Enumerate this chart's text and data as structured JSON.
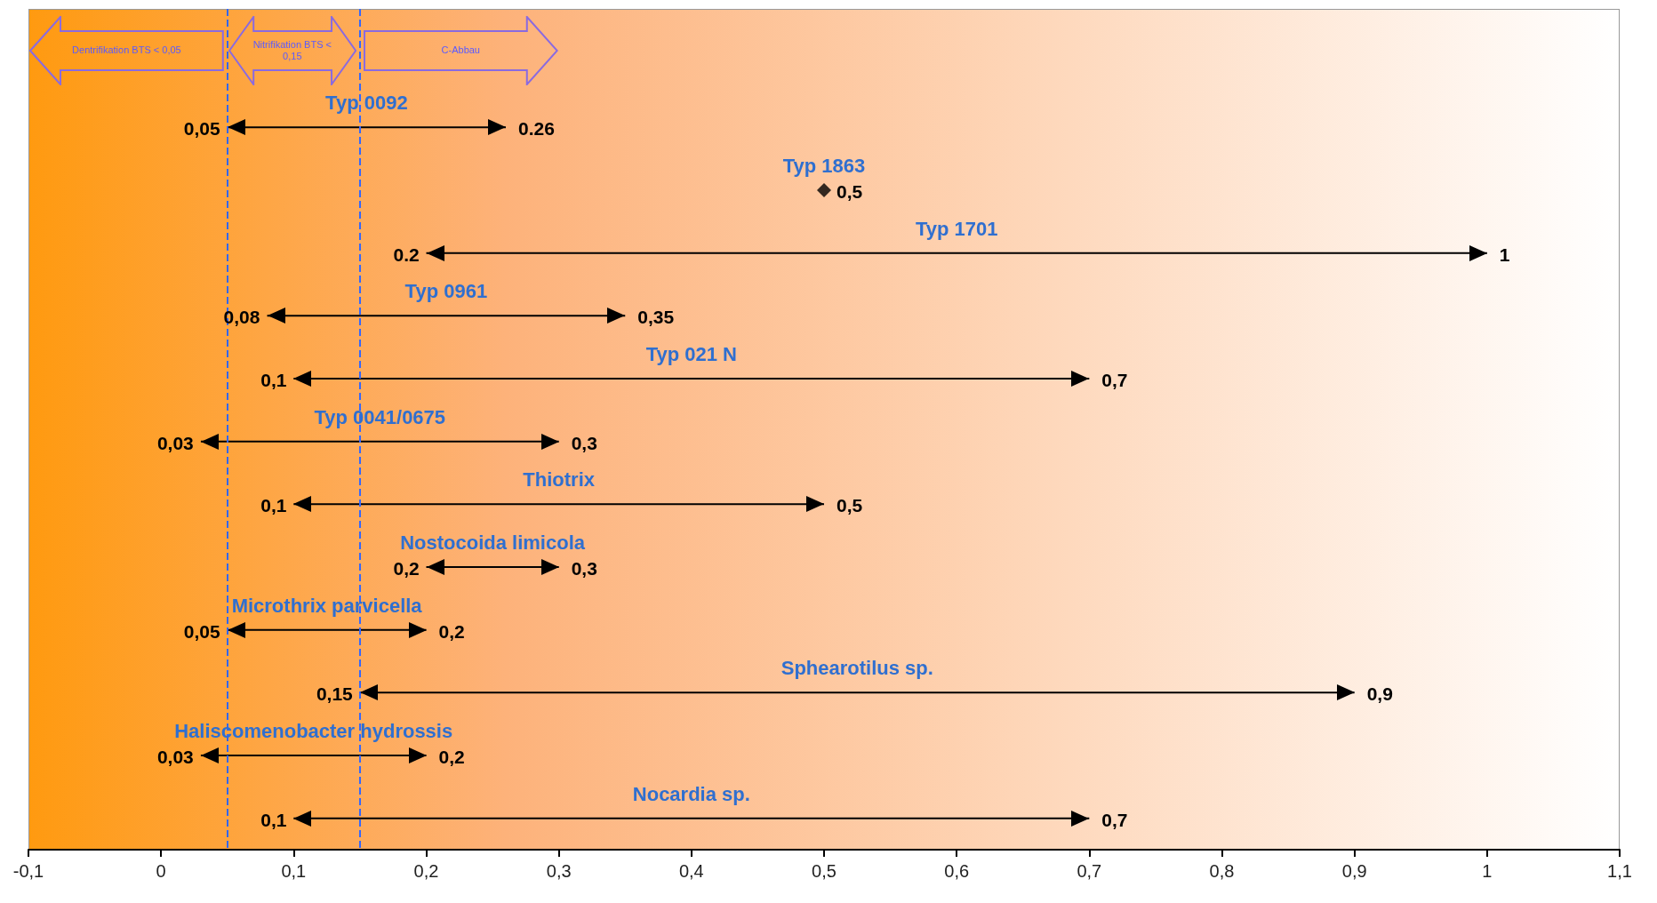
{
  "chart_data": {
    "type": "bar",
    "orientation": "horizontal",
    "categories": [
      "Typ 0092",
      "Typ 1863",
      "Typ 1701",
      "Typ 0961",
      "Typ 021 N",
      "Typ 0041/0675",
      "Thiotrix",
      "Nostocoida limicola",
      "Microthrix parvicella",
      "Sphearotilus sp.",
      "Haliscomenobacter hydrossis",
      "Nocardia sp."
    ],
    "series": [
      {
        "color": "#000000",
        "base": [
          0.05,
          null,
          0.2,
          0.08,
          0.1,
          0.03,
          0.1,
          0.2,
          0.05,
          0.15,
          0.03,
          0.1
        ],
        "values": [
          0.21,
          null,
          0.8,
          0.27,
          0.6,
          0.27,
          0.4,
          0.1,
          0.15,
          0.75,
          0.17,
          0.6
        ]
      },
      {
        "type": "scatter",
        "marker": "diamond",
        "color": "#000000",
        "values": [
          null,
          0.5,
          null,
          null,
          null,
          null,
          null,
          null,
          null,
          null,
          null,
          null
        ]
      }
    ],
    "xlim": [
      -0.1,
      1.1
    ],
    "xticks": [
      {
        "value": -0.1,
        "label": "-0,1"
      },
      0,
      {
        "value": 0.1,
        "label": "0,1"
      },
      {
        "value": 0.2,
        "label": "0,2"
      },
      {
        "value": 0.3,
        "label": "0,3"
      },
      {
        "value": 0.4,
        "label": "0,4"
      },
      {
        "value": 0.5,
        "label": "0,5"
      },
      {
        "value": 0.6,
        "label": "0,6"
      },
      {
        "value": 0.7,
        "label": "0,7"
      },
      {
        "value": 0.8,
        "label": "0,8"
      },
      {
        "value": 0.9,
        "label": "0,9"
      },
      1,
      {
        "value": 1.1,
        "label": "1,1"
      }
    ],
    "ref_lines": [
      {
        "axis": "x",
        "value": 0.05,
        "label": null,
        "color": "#3366ff",
        "line_style": "dashed"
      },
      {
        "axis": "x",
        "value": 0.15,
        "label": null,
        "color": "#3366ff",
        "line_style": "dashed"
      }
    ],
    "annotations": [
      "Dentrifikation BTS < 0,05",
      "Nitrifikation BTS < 0,15",
      "C-Abbau",
      {
        "text": "0,05",
        "x": 0.05,
        "y": "Typ 0092"
      },
      {
        "text": "0.26",
        "x": 0.26,
        "y": "Typ 0092"
      },
      {
        "text": "0,5",
        "x": 0.5,
        "y": "Typ 1863"
      },
      {
        "text": "0.2",
        "x": 0.2,
        "y": "Typ 1701"
      },
      {
        "text": "1",
        "x": 1,
        "y": "Typ 1701"
      },
      {
        "text": "0,08",
        "x": 0.08,
        "y": "Typ 0961"
      },
      {
        "text": "0,35",
        "x": 0.35,
        "y": "Typ 0961"
      },
      {
        "text": "0,1",
        "x": 0.1,
        "y": "Typ 021 N"
      },
      {
        "text": "0,7",
        "x": 0.7,
        "y": "Typ 021 N"
      },
      {
        "text": "0,03",
        "x": 0.03,
        "y": "Typ 0041/0675"
      },
      {
        "text": "0,3",
        "x": 0.3,
        "y": "Typ 0041/0675"
      },
      {
        "text": "0,1",
        "x": 0.1,
        "y": "Thiotrix"
      },
      {
        "text": "0,5",
        "x": 0.5,
        "y": "Thiotrix"
      },
      {
        "text": "0,2",
        "x": 0.2,
        "y": "Nostocoida limicola"
      },
      {
        "text": "0,3",
        "x": 0.3,
        "y": "Nostocoida limicola"
      },
      {
        "text": "0,05",
        "x": 0.05,
        "y": "Microthrix parvicella"
      },
      {
        "text": "0,2",
        "x": 0.2,
        "y": "Microthrix parvicella"
      },
      {
        "text": "0,15",
        "x": 0.15,
        "y": "Sphearotilus sp."
      },
      {
        "text": "0,9",
        "x": 0.9,
        "y": "Sphearotilus sp."
      },
      {
        "text": "0,03",
        "x": 0.03,
        "y": "Haliscomenobacter hydrossis"
      },
      {
        "text": "0,2",
        "x": 0.2,
        "y": "Haliscomenobacter hydrossis"
      },
      {
        "text": "0,1",
        "x": 0.1,
        "y": "Nocardia sp."
      },
      {
        "text": "0,7",
        "x": 0.7,
        "y": "Nocardia sp."
      }
    ]
  }
}
